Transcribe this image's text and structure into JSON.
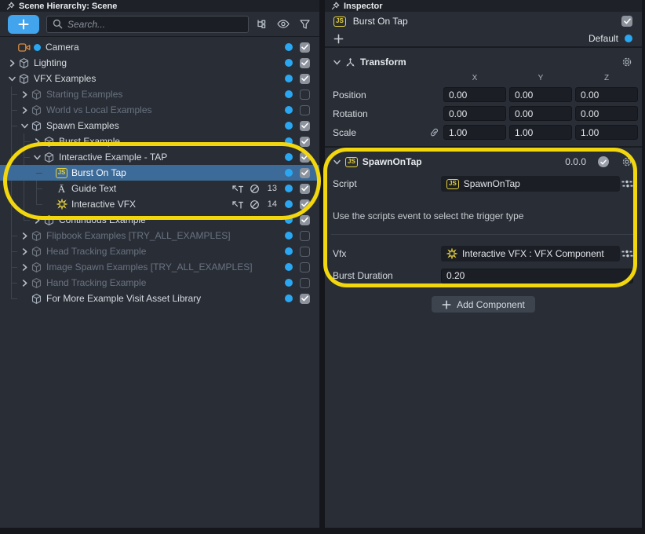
{
  "ui": {
    "js_badge": "JS"
  },
  "colors": {
    "accent_blue": "#2aa7f2",
    "selection_blue": "#3d6b99",
    "annotation_yellow": "#f2d70e",
    "camera_orange": "#dd8a3c",
    "script_yellow": "#e6d23c",
    "panel_bg": "#292e36"
  },
  "scene_hierarchy": {
    "title": "Scene Hierarchy: Scene",
    "search_placeholder": "Search...",
    "rows": [
      {
        "label": "Camera",
        "depth": 0,
        "chevron": null,
        "icon": "camera",
        "predot": true,
        "muted": false,
        "selected": false,
        "checked": true
      },
      {
        "label": "Lighting",
        "depth": 0,
        "chevron": "right",
        "icon": "cube",
        "muted": false,
        "selected": false,
        "checked": true
      },
      {
        "label": "VFX Examples",
        "depth": 0,
        "chevron": "down",
        "icon": "cube",
        "muted": false,
        "selected": false,
        "checked": true
      },
      {
        "label": "Starting Examples",
        "depth": 1,
        "chevron": "right",
        "icon": "cube",
        "muted": true,
        "selected": false,
        "checked": false
      },
      {
        "label": "World vs Local Examples",
        "depth": 1,
        "chevron": "right",
        "icon": "cube",
        "muted": true,
        "selected": false,
        "checked": false
      },
      {
        "label": "Spawn Examples",
        "depth": 1,
        "chevron": "down",
        "icon": "cube",
        "muted": false,
        "selected": false,
        "checked": true
      },
      {
        "label": "Burst Example",
        "depth": 2,
        "chevron": "right",
        "icon": "cube",
        "muted": false,
        "selected": false,
        "checked": true
      },
      {
        "label": "Interactive Example - TAP",
        "depth": 2,
        "chevron": "down",
        "icon": "cube",
        "muted": false,
        "selected": false,
        "checked": true
      },
      {
        "label": "Burst On Tap",
        "depth": 3,
        "chevron": null,
        "icon": "js",
        "muted": false,
        "selected": true,
        "checked": true
      },
      {
        "label": "Guide Text",
        "depth": 3,
        "chevron": null,
        "icon": "text",
        "muted": false,
        "selected": false,
        "checked": true,
        "badges": true,
        "count": "13"
      },
      {
        "label": "Interactive VFX",
        "depth": 3,
        "chevron": null,
        "icon": "vfx",
        "muted": false,
        "selected": false,
        "checked": true,
        "badges": true,
        "count": "14"
      },
      {
        "label": "Continuous Example",
        "depth": 2,
        "chevron": "right",
        "icon": "cube",
        "muted": false,
        "selected": false,
        "checked": true
      },
      {
        "label": "Flipbook Examples [TRY_ALL_EXAMPLES]",
        "depth": 1,
        "chevron": "right",
        "icon": "cube",
        "muted": true,
        "selected": false,
        "checked": false
      },
      {
        "label": "Head Tracking Example",
        "depth": 1,
        "chevron": "right",
        "icon": "cube",
        "muted": true,
        "selected": false,
        "checked": false
      },
      {
        "label": "Image Spawn Examples [TRY_ALL_EXAMPLES]",
        "depth": 1,
        "chevron": "right",
        "icon": "cube",
        "muted": true,
        "selected": false,
        "checked": false
      },
      {
        "label": "Hand Tracking Example",
        "depth": 1,
        "chevron": "right",
        "icon": "cube",
        "muted": true,
        "selected": false,
        "checked": false
      },
      {
        "label": "For More Example Visit Asset Library",
        "depth": 1,
        "chevron": null,
        "icon": "cube",
        "muted": false,
        "selected": false,
        "checked": true
      }
    ]
  },
  "inspector": {
    "title": "Inspector",
    "entity": {
      "name": "Burst On Tap",
      "enabled": true
    },
    "layer_label": "Default",
    "transform": {
      "title": "Transform",
      "columns": [
        "X",
        "Y",
        "Z"
      ],
      "rows": [
        {
          "label": "Position",
          "values": [
            "0.00",
            "0.00",
            "0.00"
          ]
        },
        {
          "label": "Rotation",
          "values": [
            "0.00",
            "0.00",
            "0.00"
          ]
        },
        {
          "label": "Scale",
          "values": [
            "1.00",
            "1.00",
            "1.00"
          ],
          "linked": true
        }
      ]
    },
    "component": {
      "title": "SpawnOnTap",
      "version": "0.0.0",
      "script_label": "Script",
      "script_value": "SpawnOnTap",
      "help_text": "Use the scripts event to select the trigger type",
      "vfx_label": "Vfx",
      "vfx_value": "Interactive VFX : VFX Component",
      "burst_label": "Burst Duration",
      "burst_value": "0.20"
    },
    "add_component_label": "Add Component"
  }
}
